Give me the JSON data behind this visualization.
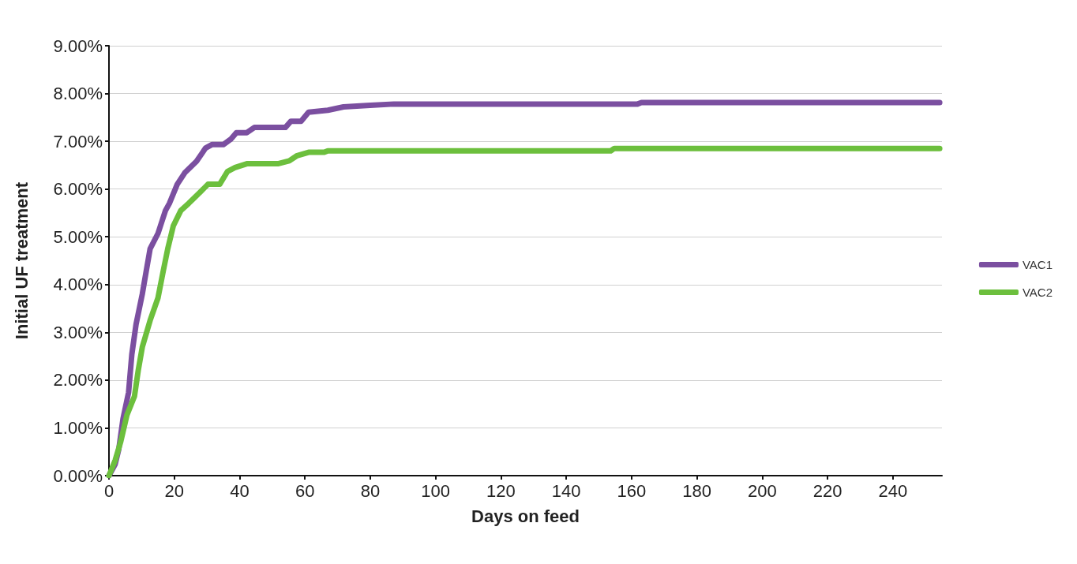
{
  "chart_data": {
    "type": "line",
    "xlabel": "Days on feed",
    "ylabel": "Initial UF treatment",
    "xlim": [
      0,
      255
    ],
    "xticks": [
      0,
      20,
      40,
      60,
      80,
      100,
      120,
      140,
      160,
      180,
      200,
      220,
      240
    ],
    "ylim": [
      0,
      9
    ],
    "yticks": [
      {
        "value": 0,
        "label": "0.00%"
      },
      {
        "value": 1,
        "label": "1.00%"
      },
      {
        "value": 2,
        "label": "2.00%"
      },
      {
        "value": 3,
        "label": "3.00%"
      },
      {
        "value": 4,
        "label": "4.00%"
      },
      {
        "value": 5,
        "label": "5.00%"
      },
      {
        "value": 6,
        "label": "6.00%"
      },
      {
        "value": 7,
        "label": "7.00%"
      },
      {
        "value": 8,
        "label": "8.00%"
      },
      {
        "value": 9,
        "label": "9.00%"
      }
    ],
    "grid": "y",
    "legend": "right",
    "marker": "none",
    "line_style": "solid",
    "series": [
      {
        "name": "VAC1",
        "color": "#7b4fa0",
        "x": [
          0,
          1.9,
          3,
          4.3,
          6,
          7,
          8.3,
          10.2,
          11.4,
          12.6,
          15,
          17.3,
          18.5,
          20.9,
          23.2,
          26.8,
          29.6,
          31.5,
          35,
          37.4,
          39,
          42.2,
          44.5,
          54,
          55.7,
          58.8,
          61.1,
          67,
          71.8,
          78.9,
          87.2,
          161.8,
          163,
          254.3
        ],
        "values": [
          0,
          0.24,
          0.55,
          1.19,
          1.74,
          2.54,
          3.17,
          3.8,
          4.28,
          4.75,
          5.07,
          5.55,
          5.7,
          6.1,
          6.34,
          6.58,
          6.86,
          6.93,
          6.93,
          7.05,
          7.18,
          7.18,
          7.29,
          7.29,
          7.42,
          7.42,
          7.61,
          7.65,
          7.72,
          7.75,
          7.78,
          7.78,
          7.81,
          7.81
        ]
      },
      {
        "name": "VAC2",
        "color": "#6cbf3d",
        "x": [
          0,
          1.9,
          3.6,
          5.5,
          7.8,
          9,
          10.2,
          12.6,
          15,
          16.6,
          18,
          19.7,
          22,
          24.4,
          28,
          30.3,
          33.9,
          36.3,
          38.6,
          42.2,
          51.7,
          55.2,
          57.6,
          61.1,
          65.9,
          67,
          153.6,
          154.7,
          254.3
        ],
        "values": [
          0,
          0.32,
          0.71,
          1.27,
          1.66,
          2.22,
          2.69,
          3.25,
          3.72,
          4.28,
          4.75,
          5.23,
          5.55,
          5.7,
          5.94,
          6.1,
          6.1,
          6.37,
          6.45,
          6.53,
          6.53,
          6.59,
          6.7,
          6.77,
          6.77,
          6.8,
          6.8,
          6.85,
          6.85
        ]
      }
    ]
  }
}
